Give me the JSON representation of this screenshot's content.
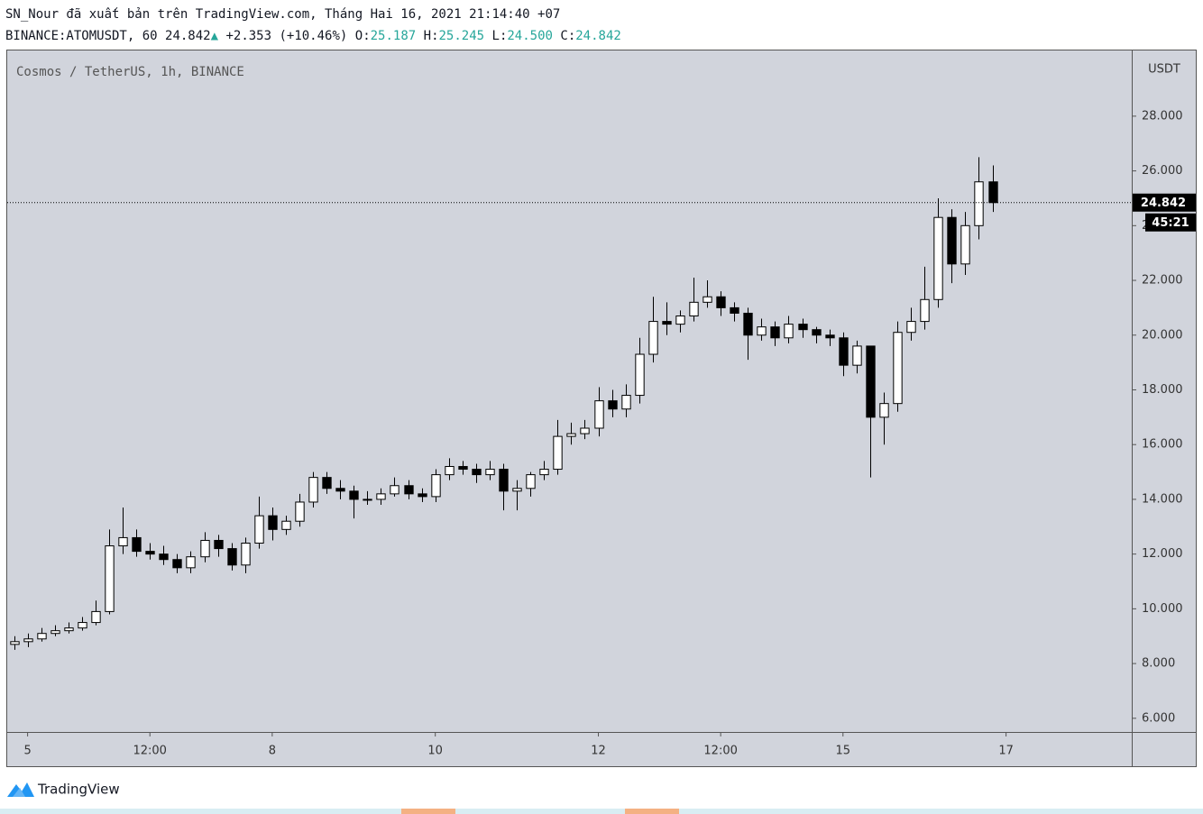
{
  "header": {
    "publisher": "SN_Nour đã xuất bản trên TradingView.com, Tháng Hai 16, 2021 21:14:40 +07",
    "symbol": "BINANCE:ATOMUSDT, 60",
    "price": "24.842",
    "change": "+2.353 (+10.46%)",
    "o_label": "O:",
    "o": "25.187",
    "h_label": "H:",
    "h": "25.245",
    "l_label": "L:",
    "l": "24.500",
    "c_label": "C:",
    "c": "24.842"
  },
  "chart_data": {
    "type": "candlestick",
    "title": "Cosmos / TetherUS, 1h, BINANCE",
    "y_unit": "USDT",
    "countdown": "45:21",
    "up_color": "#ffffff",
    "down_color": "#000000",
    "grid": false,
    "x": [
      "2021-02-04T20:00",
      "2021-02-05T00:00",
      "2021-02-05T04:00",
      "2021-02-05T08:00",
      "2021-02-05T12:00",
      "2021-02-05T16:00",
      "2021-02-05T20:00",
      "2021-02-06T00:00",
      "2021-02-06T04:00",
      "2021-02-06T08:00",
      "2021-02-06T12:00",
      "2021-02-06T16:00",
      "2021-02-06T20:00",
      "2021-02-07T00:00",
      "2021-02-07T04:00",
      "2021-02-07T08:00",
      "2021-02-07T12:00",
      "2021-02-07T16:00",
      "2021-02-07T20:00",
      "2021-02-08T00:00",
      "2021-02-08T04:00",
      "2021-02-08T08:00",
      "2021-02-08T12:00",
      "2021-02-08T16:00",
      "2021-02-08T20:00",
      "2021-02-09T00:00",
      "2021-02-09T04:00",
      "2021-02-09T08:00",
      "2021-02-09T12:00",
      "2021-02-09T16:00",
      "2021-02-09T20:00",
      "2021-02-10T00:00",
      "2021-02-10T04:00",
      "2021-02-10T08:00",
      "2021-02-10T12:00",
      "2021-02-10T16:00",
      "2021-02-10T20:00",
      "2021-02-11T00:00",
      "2021-02-11T04:00",
      "2021-02-11T08:00",
      "2021-02-11T12:00",
      "2021-02-11T16:00",
      "2021-02-11T20:00",
      "2021-02-12T00:00",
      "2021-02-12T04:00",
      "2021-02-12T08:00",
      "2021-02-12T12:00",
      "2021-02-12T16:00",
      "2021-02-12T20:00",
      "2021-02-13T00:00",
      "2021-02-13T04:00",
      "2021-02-13T08:00",
      "2021-02-13T12:00",
      "2021-02-13T16:00",
      "2021-02-13T20:00",
      "2021-02-14T00:00",
      "2021-02-14T04:00",
      "2021-02-14T08:00",
      "2021-02-14T12:00",
      "2021-02-14T16:00",
      "2021-02-14T20:00",
      "2021-02-15T00:00",
      "2021-02-15T04:00",
      "2021-02-15T08:00",
      "2021-02-15T12:00",
      "2021-02-15T16:00",
      "2021-02-15T20:00",
      "2021-02-16T00:00",
      "2021-02-16T04:00",
      "2021-02-16T08:00",
      "2021-02-16T12:00",
      "2021-02-16T16:00",
      "2021-02-16T20:00"
    ],
    "open": [
      8.7,
      8.8,
      8.9,
      9.1,
      9.2,
      9.3,
      9.5,
      9.9,
      12.3,
      12.6,
      12.1,
      12.0,
      11.8,
      11.5,
      11.9,
      12.5,
      12.2,
      11.6,
      12.4,
      13.4,
      12.9,
      13.2,
      13.9,
      14.8,
      14.4,
      14.3,
      14.0,
      14.0,
      14.2,
      14.5,
      14.2,
      14.1,
      14.9,
      15.2,
      15.1,
      14.9,
      15.1,
      14.3,
      14.4,
      14.9,
      15.1,
      16.3,
      16.4,
      16.6,
      17.6,
      17.3,
      17.8,
      19.3,
      20.5,
      20.4,
      20.7,
      21.2,
      21.4,
      21.0,
      20.8,
      20.0,
      20.3,
      19.9,
      20.4,
      20.2,
      20.0,
      19.9,
      18.9,
      19.6,
      17.0,
      17.5,
      20.1,
      20.5,
      21.3,
      24.3,
      22.6,
      24.0,
      25.6
    ],
    "high": [
      9.0,
      9.1,
      9.3,
      9.4,
      9.5,
      9.7,
      10.3,
      12.9,
      13.7,
      12.9,
      12.4,
      12.3,
      12.0,
      12.1,
      12.8,
      12.7,
      12.4,
      12.6,
      14.1,
      13.7,
      13.4,
      14.2,
      15.0,
      15.0,
      14.7,
      14.5,
      14.3,
      14.4,
      14.8,
      14.7,
      14.4,
      15.1,
      15.5,
      15.4,
      15.3,
      15.4,
      15.3,
      14.7,
      15.0,
      15.4,
      16.9,
      16.8,
      16.9,
      18.1,
      18.0,
      18.2,
      19.9,
      21.4,
      21.2,
      20.9,
      22.1,
      22.0,
      21.6,
      21.2,
      21.0,
      20.6,
      20.5,
      20.7,
      20.6,
      20.3,
      20.2,
      20.1,
      19.8,
      19.6,
      17.9,
      20.5,
      21.0,
      22.5,
      25.0,
      24.6,
      24.5,
      26.5,
      26.2
    ],
    "low": [
      8.5,
      8.6,
      8.8,
      9.0,
      9.1,
      9.2,
      9.4,
      9.8,
      12.0,
      11.9,
      11.8,
      11.6,
      11.3,
      11.3,
      11.7,
      11.9,
      11.4,
      11.3,
      12.2,
      12.5,
      12.7,
      13.0,
      13.7,
      14.2,
      14.0,
      13.3,
      13.8,
      13.8,
      14.1,
      14.0,
      13.9,
      13.9,
      14.7,
      14.9,
      14.6,
      14.7,
      13.6,
      13.6,
      14.1,
      14.7,
      14.9,
      16.0,
      16.2,
      16.3,
      17.0,
      17.0,
      17.5,
      19.0,
      20.0,
      20.1,
      20.5,
      21.0,
      20.7,
      20.5,
      19.1,
      19.8,
      19.6,
      19.7,
      19.9,
      19.7,
      19.6,
      18.5,
      18.6,
      14.8,
      16.0,
      17.2,
      19.8,
      20.2,
      21.0,
      21.9,
      22.2,
      23.5,
      24.5
    ],
    "close": [
      8.8,
      8.9,
      9.1,
      9.2,
      9.3,
      9.5,
      9.9,
      12.3,
      12.6,
      12.1,
      12.0,
      11.8,
      11.5,
      11.9,
      12.5,
      12.2,
      11.6,
      12.4,
      13.4,
      12.9,
      13.2,
      13.9,
      14.8,
      14.4,
      14.3,
      14.0,
      14.0,
      14.2,
      14.5,
      14.2,
      14.1,
      14.9,
      15.2,
      15.1,
      14.9,
      15.1,
      14.3,
      14.4,
      14.9,
      15.1,
      16.3,
      16.4,
      16.6,
      17.6,
      17.3,
      17.8,
      19.3,
      20.5,
      20.4,
      20.7,
      21.2,
      21.4,
      21.0,
      20.8,
      20.0,
      20.3,
      19.9,
      20.4,
      20.2,
      20.0,
      19.9,
      18.9,
      19.6,
      17.0,
      17.5,
      20.1,
      20.5,
      21.3,
      24.3,
      22.6,
      24.0,
      25.6,
      24.842
    ],
    "last_price_label": "24.842",
    "ylim": [
      5.5,
      30.4
    ],
    "yticks": [
      {
        "value": 6,
        "label": "6.000"
      },
      {
        "value": 8,
        "label": "8.000"
      },
      {
        "value": 10,
        "label": "10.000"
      },
      {
        "value": 12,
        "label": "12.000"
      },
      {
        "value": 14,
        "label": "14.000"
      },
      {
        "value": 16,
        "label": "16.000"
      },
      {
        "value": 18,
        "label": "18.000"
      },
      {
        "value": 20,
        "label": "20.000"
      },
      {
        "value": 22,
        "label": "22.000"
      },
      {
        "value": 24,
        "label": "24.000"
      },
      {
        "value": 26,
        "label": "26.000"
      },
      {
        "value": 28,
        "label": "28.000"
      }
    ],
    "xlim": [
      "2021-02-04T18:00",
      "2021-02-18T13:00"
    ],
    "xticks": [
      {
        "value": "2021-02-05T00:00",
        "label": "5"
      },
      {
        "value": "2021-02-06T12:00",
        "label": "12:00"
      },
      {
        "value": "2021-02-08T00:00",
        "label": "8"
      },
      {
        "value": "2021-02-10T00:00",
        "label": "10"
      },
      {
        "value": "2021-02-12T00:00",
        "label": "12"
      },
      {
        "value": "2021-02-13T12:00",
        "label": "12:00"
      },
      {
        "value": "2021-02-15T00:00",
        "label": "15"
      },
      {
        "value": "2021-02-17T00:00",
        "label": "17"
      }
    ]
  },
  "footer": {
    "brand": "TradingView"
  }
}
